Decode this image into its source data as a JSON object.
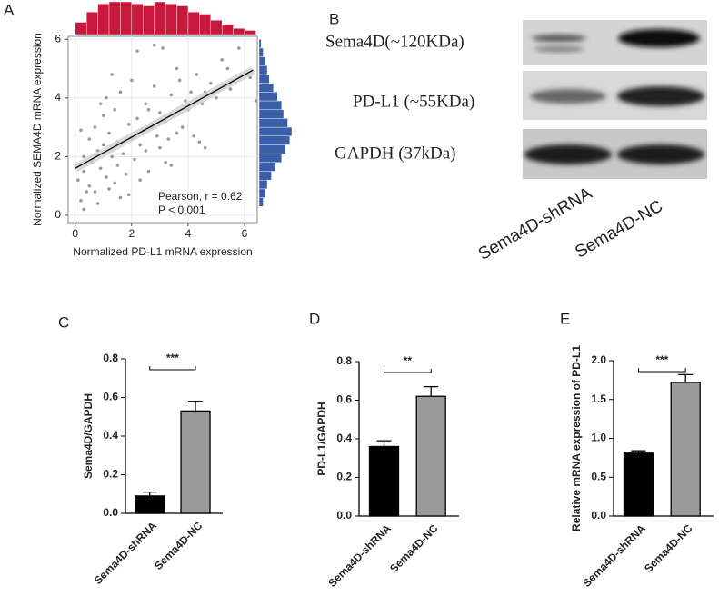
{
  "panel_labels": [
    "A",
    "B",
    "C",
    "D",
    "E"
  ],
  "blot": {
    "rows": [
      "Sema4D(~120KDa)",
      "PD-L1 (~55KDa)",
      "GAPDH (37kDa)"
    ],
    "lanes": [
      "Sema4D-shRNA",
      "Sema4D-NC"
    ]
  },
  "chart_data": [
    {
      "type": "scatter",
      "xlabel": "Normalized PD-L1 mRNA expression",
      "ylabel": "Normalized SEMA4D mRNA expression",
      "annotations": [
        "Pearson, r = 0.62",
        "P < 0.001"
      ],
      "x": [
        0.1,
        0.2,
        0.3,
        0.3,
        0.4,
        0.5,
        0.5,
        0.6,
        0.7,
        0.8,
        0.8,
        0.9,
        1.0,
        1.0,
        1.1,
        1.2,
        1.2,
        1.3,
        1.4,
        1.5,
        1.5,
        1.6,
        1.7,
        1.8,
        1.9,
        2.0,
        2.0,
        2.1,
        2.2,
        2.3,
        2.4,
        2.5,
        2.5,
        2.6,
        2.7,
        2.8,
        2.9,
        3.0,
        3.0,
        3.1,
        3.2,
        3.3,
        3.4,
        3.5,
        3.6,
        3.7,
        3.8,
        3.9,
        4.0,
        4.1,
        4.2,
        4.3,
        4.5,
        4.6,
        4.8,
        5.0,
        5.2,
        5.5,
        5.8,
        6.2,
        6.4,
        0.3,
        0.7,
        1.1,
        1.4,
        1.9,
        2.3,
        2.8,
        3.2,
        3.6,
        4.4,
        1.6,
        2.6,
        0.9,
        2.2,
        3.4,
        1.3,
        4.6,
        0.2,
        5.4
      ],
      "y": [
        1.2,
        0.5,
        2.0,
        1.5,
        0.8,
        2.6,
        1.0,
        1.8,
        3.0,
        0.4,
        2.2,
        1.6,
        2.4,
        3.4,
        1.3,
        2.8,
        0.9,
        2.0,
        3.6,
        1.7,
        2.5,
        4.2,
        2.1,
        1.4,
        3.1,
        2.6,
        4.6,
        1.9,
        3.3,
        2.4,
        2.9,
        3.8,
        2.2,
        1.5,
        3.0,
        4.4,
        2.7,
        3.5,
        2.3,
        5.7,
        3.2,
        2.6,
        4.1,
        3.4,
        2.8,
        4.6,
        3.0,
        3.9,
        3.6,
        4.2,
        2.7,
        4.8,
        3.8,
        4.2,
        4.5,
        4.0,
        5.3,
        4.3,
        5.7,
        4.7,
        3.9,
        0.2,
        0.8,
        4.0,
        1.1,
        0.7,
        1.2,
        5.8,
        1.8,
        5.0,
        2.5,
        0.6,
        3.6,
        3.8,
        5.6,
        1.7,
        4.8,
        2.3,
        2.9,
        5.0
      ],
      "color": "#9a9a9a",
      "fit_line": {
        "x": [
          0,
          6.3
        ],
        "y": [
          1.6,
          4.95
        ],
        "color": "#111111"
      },
      "hist_x": {
        "bins": [
          0,
          0.4,
          0.8,
          1.2,
          1.6,
          2.0,
          2.4,
          2.8,
          3.2,
          3.6,
          4.0,
          4.4,
          4.8,
          5.2,
          5.6,
          6.0,
          6.4
        ],
        "counts": [
          12,
          22,
          30,
          32,
          32,
          30,
          28,
          32,
          30,
          28,
          22,
          20,
          14,
          10,
          6,
          4
        ],
        "color": "#c8193c"
      },
      "hist_y": {
        "bins": [
          0.3,
          0.6,
          0.9,
          1.2,
          1.5,
          1.8,
          2.1,
          2.4,
          2.7,
          3.0,
          3.3,
          3.6,
          3.9,
          4.2,
          4.5,
          4.8,
          5.1,
          5.4,
          5.7,
          6.0
        ],
        "counts": [
          4,
          6,
          8,
          12,
          16,
          22,
          26,
          30,
          32,
          28,
          24,
          22,
          18,
          14,
          10,
          8,
          6,
          4,
          2
        ],
        "color": "#3a5fa8"
      },
      "xlim": [
        -0.25,
        6.45
      ],
      "xticks": [
        0,
        2,
        4,
        6
      ],
      "ylim": [
        -0.25,
        6.1
      ],
      "yticks": [
        0,
        2,
        4,
        6
      ],
      "grid": true
    },
    {
      "type": "bar",
      "ylabel": "Sema4D/GAPDH",
      "categories": [
        "Sema4D-shRNA",
        "Sema4D-NC"
      ],
      "values": [
        0.09,
        0.53
      ],
      "errors": [
        0.02,
        0.05
      ],
      "colors": [
        "#000000",
        "#9a9a9a"
      ],
      "significance": "***",
      "ylim": [
        0,
        0.8
      ],
      "yticks": [
        {
          "value": 0,
          "label": "0.0"
        },
        0.2,
        0.4,
        0.6,
        0.8
      ]
    },
    {
      "type": "bar",
      "ylabel": "PD-L1/GAPDH",
      "categories": [
        "Sema4D-shRNA",
        "Sema4D-NC"
      ],
      "values": [
        0.36,
        0.62
      ],
      "errors": [
        0.03,
        0.05
      ],
      "colors": [
        "#000000",
        "#9a9a9a"
      ],
      "significance": "**",
      "ylim": [
        0,
        0.8
      ],
      "yticks": [
        {
          "value": 0,
          "label": "0.0"
        },
        0.2,
        0.4,
        0.6,
        0.8
      ]
    },
    {
      "type": "bar",
      "ylabel": "Relative mRNA expression of PD-L1",
      "categories": [
        "Sema4D-shRNA",
        "Sema4D-NC"
      ],
      "values": [
        0.81,
        1.72
      ],
      "errors": [
        0.03,
        0.1
      ],
      "colors": [
        "#000000",
        "#9a9a9a"
      ],
      "significance": "***",
      "ylim": [
        0,
        2.0
      ],
      "yticks": [
        {
          "value": 0,
          "label": "0.0"
        },
        0.5,
        {
          "value": 1,
          "label": "1.0"
        },
        1.5,
        {
          "value": 2,
          "label": "2.0"
        }
      ]
    }
  ]
}
